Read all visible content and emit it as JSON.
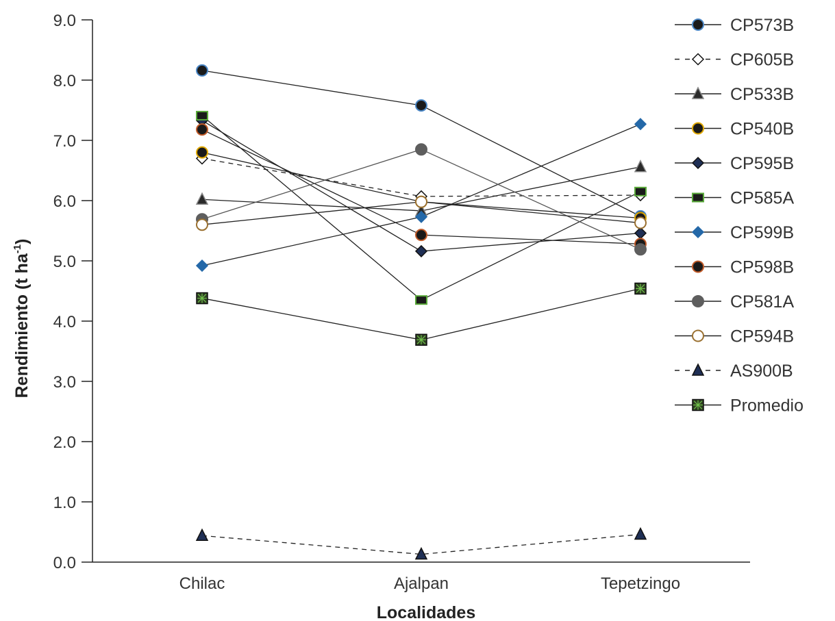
{
  "chart_data": {
    "type": "line",
    "xlabel": "Localidades",
    "ylabel": "Rendimiento (t ha",
    "ylabel_superscript": "-1",
    "ylabel_close": ")",
    "categories": [
      "Chilac",
      "Ajalpan",
      "Tepetzingo"
    ],
    "ylim": [
      0,
      9
    ],
    "yticks": [
      "0.0",
      "1.0",
      "2.0",
      "3.0",
      "4.0",
      "5.0",
      "6.0",
      "7.0",
      "8.0",
      "9.0"
    ],
    "grid": false,
    "legend_position": "right",
    "series": [
      {
        "name": "CP573B",
        "values": [
          8.16,
          7.58,
          5.74
        ],
        "marker": "circle",
        "fill": "#1a1a1a",
        "edge": "#4a86c5",
        "dash": false
      },
      {
        "name": "CP605B",
        "values": [
          6.7,
          6.07,
          6.09
        ],
        "marker": "diamond",
        "fill": "#ffffff",
        "edge": "#111111",
        "dash": true
      },
      {
        "name": "CP533B",
        "values": [
          6.02,
          5.83,
          6.56
        ],
        "marker": "triangle",
        "fill": "#2a2a2a",
        "edge": "#888888",
        "dash": false
      },
      {
        "name": "CP540B",
        "values": [
          6.8,
          5.98,
          5.71
        ],
        "marker": "circle",
        "fill": "#1a1a1a",
        "edge": "#e0a800",
        "dash": false
      },
      {
        "name": "CP595B",
        "values": [
          7.33,
          5.16,
          5.46
        ],
        "marker": "diamond",
        "fill": "#1f2f55",
        "edge": "#111111",
        "dash": false
      },
      {
        "name": "CP585A",
        "values": [
          7.41,
          4.35,
          6.15
        ],
        "marker": "square",
        "fill": "#1a1a1a",
        "edge": "#5aaa3a",
        "dash": false
      },
      {
        "name": "CP599B",
        "values": [
          4.92,
          5.73,
          7.27
        ],
        "marker": "diamond",
        "fill": "#2468a8",
        "edge": "#2468a8",
        "dash": false
      },
      {
        "name": "CP598B",
        "values": [
          7.18,
          5.43,
          5.28
        ],
        "marker": "circle",
        "fill": "#1a1a1a",
        "edge": "#c05a28",
        "dash": false
      },
      {
        "name": "CP581A",
        "values": [
          5.69,
          6.85,
          5.19
        ],
        "marker": "circle",
        "fill": "#5e5e5e",
        "edge": "#5e5e5e",
        "dash": false
      },
      {
        "name": "CP594B",
        "values": [
          5.6,
          5.98,
          5.63
        ],
        "marker": "circle",
        "fill": "#ffffff",
        "edge": "#9a7030",
        "dash": false
      },
      {
        "name": "AS900B",
        "values": [
          0.44,
          0.13,
          0.46
        ],
        "marker": "triangle",
        "fill": "#1f2f55",
        "edge": "#111111",
        "dash": true
      },
      {
        "name": "Promedio",
        "values": [
          4.38,
          3.69,
          4.54
        ],
        "marker": "xsquare",
        "fill": "#2e3f22",
        "edge": "#111111",
        "dash": false
      }
    ]
  }
}
